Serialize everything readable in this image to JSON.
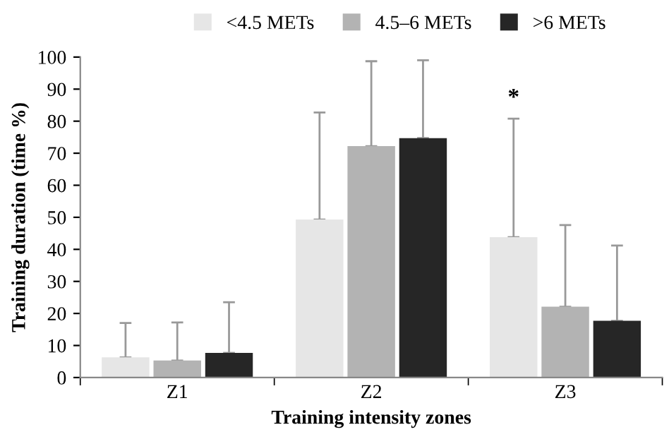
{
  "chart_data": {
    "type": "bar",
    "xlabel": "Training intensity zones",
    "ylabel": "Training duration (time %)",
    "categories": [
      "Z1",
      "Z2",
      "Z3"
    ],
    "series": [
      {
        "name": "<4.5 METs",
        "color": "#e6e6e6",
        "values": [
          6.3,
          49.3,
          43.8
        ],
        "errors": [
          [
            6.3,
            17.0
          ],
          [
            49.3,
            82.7
          ],
          [
            43.8,
            80.8
          ]
        ]
      },
      {
        "name": "4.5–6 METs",
        "color": "#b3b3b3",
        "values": [
          5.3,
          72.2,
          22.1
        ],
        "errors": [
          [
            5.3,
            17.2
          ],
          [
            72.2,
            98.7
          ],
          [
            22.1,
            47.6
          ]
        ]
      },
      {
        "name": ">6 METs",
        "color": "#262626",
        "values": [
          7.7,
          74.7,
          17.7
        ],
        "errors": [
          [
            7.7,
            23.5
          ],
          [
            74.7,
            99.0
          ],
          [
            17.7,
            41.2
          ]
        ]
      }
    ],
    "annotations": [
      "*"
    ],
    "ylim": [
      0,
      100
    ],
    "yticks": [
      0,
      10,
      20,
      30,
      40,
      50,
      60,
      70,
      80,
      90,
      100
    ],
    "grid": false,
    "legend": "top"
  }
}
